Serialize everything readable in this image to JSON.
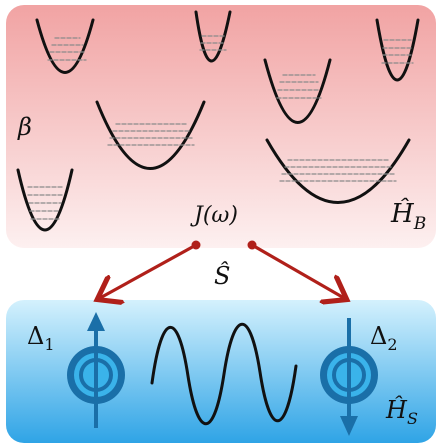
{
  "bath": {
    "beta": "β",
    "hamiltonian": "Ĥ",
    "hamiltonian_sub": "B"
  },
  "coupling": {
    "spectral_density": "J(ω)",
    "operator": "Ŝ"
  },
  "system": {
    "delta1": "Δ",
    "delta1_sub": "1",
    "delta2": "Δ",
    "delta2_sub": "2",
    "hamiltonian": "Ĥ",
    "hamiltonian_sub": "S"
  },
  "colors": {
    "bath_top": "#f2a0a0",
    "bath_bottom": "#fbe8e8",
    "system_top": "#c9ecfb",
    "system_bottom": "#3aa9e8",
    "arrow": "#b0201a",
    "spin": "#1a6fa8",
    "spin_fill": "#3ab0e8",
    "levels": "#8a8a8a"
  },
  "icons": [
    "harmonic-well-icon",
    "spin-up-icon",
    "spin-down-icon",
    "wave-icon",
    "coupling-arrow-icon"
  ]
}
